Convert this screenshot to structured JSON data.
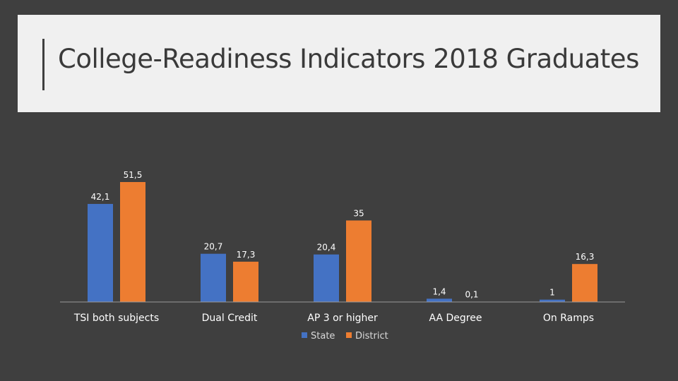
{
  "slide": {
    "title": "College-Readiness Indicators 2018 Graduates"
  },
  "chart_data": {
    "type": "bar",
    "categories": [
      "TSI both subjects",
      "Dual Credit",
      "AP 3 or higher",
      "AA Degree",
      "On Ramps"
    ],
    "series": [
      {
        "name": "State",
        "values": [
          42.1,
          20.7,
          20.4,
          1.4,
          1
        ],
        "labels": [
          "42,1",
          "20,7",
          "20,4",
          "1,4",
          "1"
        ],
        "color": "#4472c4"
      },
      {
        "name": "District",
        "values": [
          51.5,
          17.3,
          35,
          0.1,
          16.3
        ],
        "labels": [
          "51,5",
          "17,3",
          "35",
          "0,1",
          "16,3"
        ],
        "color": "#ed7d31"
      }
    ],
    "ylim": [
      0,
      51.5
    ],
    "legend": "bottom-center",
    "grid": false
  }
}
